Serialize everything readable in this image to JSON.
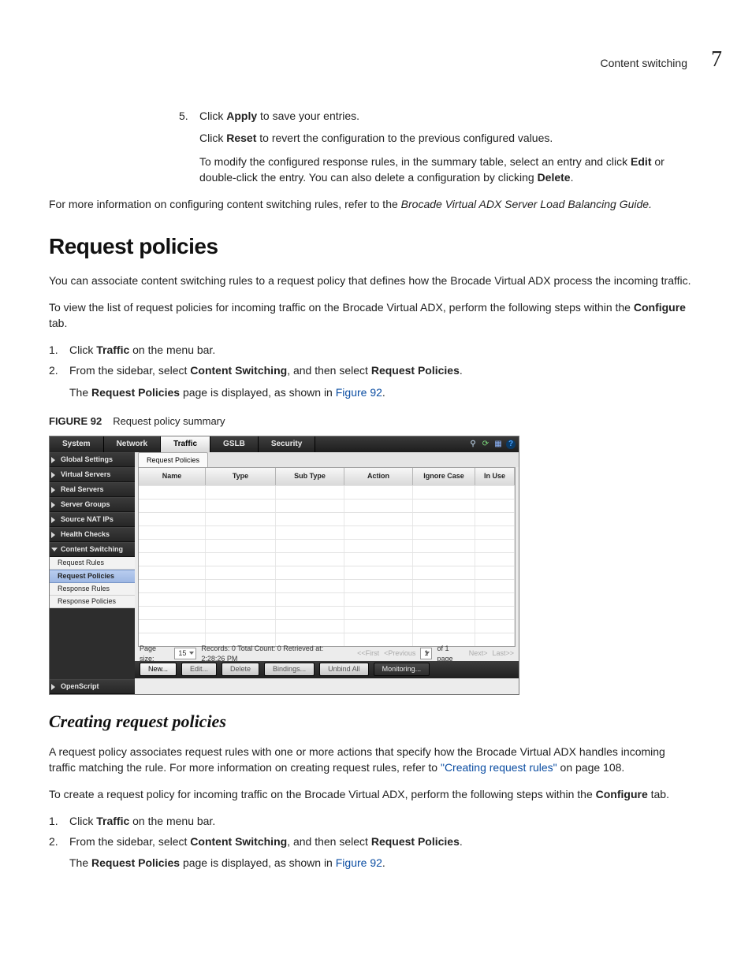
{
  "header": {
    "section": "Content switching",
    "chapter": "7"
  },
  "intro": {
    "step5_num": "5.",
    "step5_a": "Click ",
    "step5_b": "Apply",
    "step5_c": " to save your entries.",
    "reset_a": "Click ",
    "reset_b": "Reset",
    "reset_c": " to revert the configuration to the previous configured values.",
    "mod_a": "To modify the configured response rules, in the summary table, select an entry and click ",
    "mod_b": "Edit",
    "mod_c": " or double-click the entry. You can also delete a configuration by clicking ",
    "mod_d": "Delete",
    "mod_e": ".",
    "more_a": "For more information on configuring content switching rules, refer to the ",
    "more_b": "Brocade Virtual ADX Server Load Balancing Guide."
  },
  "reqpol": {
    "title": "Request policies",
    "p1": "You can associate content switching rules to a request policy that defines how the Brocade Virtual ADX process the incoming traffic.",
    "p2_a": "To view the list of request policies for incoming traffic on the Brocade Virtual ADX, perform the following steps within the ",
    "p2_b": "Configure",
    "p2_c": " tab.",
    "s1_n": "1.",
    "s1_a": "Click ",
    "s1_b": "Traffic",
    "s1_c": " on the menu bar.",
    "s2_n": "2.",
    "s2_a": "From the sidebar, select ",
    "s2_b": "Content Switching",
    "s2_c": ", and then select ",
    "s2_d": "Request Policies",
    "s2_e": ".",
    "s3_a": "The ",
    "s3_b": "Request Policies",
    "s3_c": " page is displayed, as shown in ",
    "s3_link": "Figure 92",
    "s3_d": "."
  },
  "fig": {
    "num": "FIGURE 92",
    "title": "Request policy summary"
  },
  "shot": {
    "tabs": {
      "system": "System",
      "network": "Network",
      "traffic": "Traffic",
      "gslb": "GSLB",
      "security": "Security"
    },
    "icons": {
      "pin": "⚲",
      "refresh": "⟳",
      "save": "▦",
      "help": "?"
    },
    "side": {
      "global": "Global Settings",
      "vs": "Virtual Servers",
      "rs": "Real Servers",
      "sg": "Server Groups",
      "snat": "Source NAT IPs",
      "hc": "Health Checks",
      "csw": "Content Switching",
      "leaves": {
        "rr": "Request Rules",
        "rp": "Request Policies",
        "resr": "Response Rules",
        "resp": "Response Policies"
      },
      "os": "OpenScript"
    },
    "subtab": "Request Policies",
    "cols": {
      "name": "Name",
      "type": "Type",
      "sub": "Sub Type",
      "action": "Action",
      "ignore": "Ignore Case",
      "inuse": "In Use"
    },
    "rows": 12,
    "pager": {
      "ps_label": "Page size:",
      "ps_val": "15",
      "status": "Records: 0  Total Count: 0  Retrieved at: 2:28:26 PM",
      "first": "<<First",
      "prev": "<Previous",
      "page": "1",
      "of": "of 1 page",
      "next": "Next>",
      "last": "Last>>"
    },
    "btns": {
      "new": "New...",
      "edit": "Edit...",
      "del": "Delete",
      "bind": "Bindings...",
      "unbind": "Unbind All",
      "mon": "Monitoring..."
    }
  },
  "create": {
    "title": "Creating request policies",
    "p1_a": "A request policy associates request rules with one or more actions that specify how the Brocade Virtual ADX handles incoming traffic matching the rule. For more information on creating request rules, refer to ",
    "p1_link": "\"Creating request rules\"",
    "p1_b": " on page 108.",
    "p2_a": "To create a request policy for incoming traffic on the Brocade Virtual ADX, perform the following steps within the ",
    "p2_b": "Configure",
    "p2_c": " tab.",
    "s1_n": "1.",
    "s1_a": "Click ",
    "s1_b": "Traffic",
    "s1_c": " on the menu bar.",
    "s2_n": "2.",
    "s2_a": "From the sidebar, select ",
    "s2_b": "Content Switching",
    "s2_c": ", and then select ",
    "s2_d": "Request Policies",
    "s2_e": ".",
    "s3_a": "The ",
    "s3_b": "Request Policies",
    "s3_c": " page is displayed, as shown in ",
    "s3_link": "Figure 92",
    "s3_d": "."
  }
}
